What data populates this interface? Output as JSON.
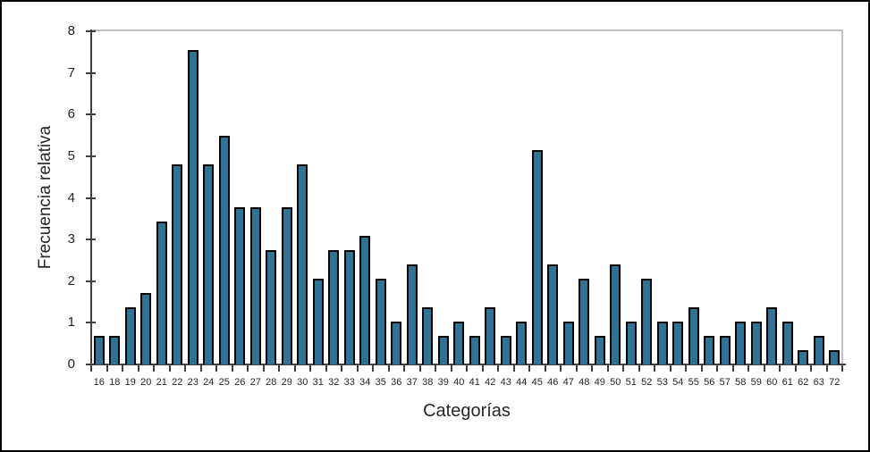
{
  "chart_data": {
    "type": "bar",
    "xlabel": "Categorías",
    "ylabel": "Frecuencia relativa",
    "ylim": [
      0,
      8
    ],
    "y_tick_labels": [
      "0",
      "1",
      "2",
      "3",
      "4",
      "5",
      "6",
      "7",
      "8"
    ],
    "categories": [
      "16",
      "18",
      "19",
      "20",
      "21",
      "22",
      "23",
      "24",
      "25",
      "26",
      "27",
      "28",
      "29",
      "30",
      "31",
      "32",
      "33",
      "34",
      "35",
      "36",
      "37",
      "38",
      "39",
      "40",
      "41",
      "42",
      "43",
      "44",
      "45",
      "46",
      "47",
      "48",
      "49",
      "50",
      "51",
      "52",
      "53",
      "54",
      "55",
      "56",
      "57",
      "58",
      "59",
      "60",
      "61",
      "62",
      "63",
      "72"
    ],
    "values": [
      0.69,
      0.69,
      1.37,
      1.72,
      3.44,
      4.81,
      7.56,
      4.81,
      5.5,
      3.78,
      3.78,
      2.75,
      3.78,
      4.81,
      2.06,
      2.75,
      2.75,
      3.09,
      2.06,
      1.03,
      2.41,
      1.37,
      0.69,
      1.03,
      0.69,
      1.37,
      0.69,
      1.03,
      5.15,
      2.41,
      1.03,
      2.06,
      0.69,
      2.41,
      1.03,
      2.06,
      1.03,
      1.03,
      1.37,
      0.69,
      0.69,
      1.03,
      1.03,
      1.37,
      1.03,
      0.34,
      0.69,
      0.34
    ],
    "legend": "none",
    "grid": "single gray gridline at y=8 forming top of plot area, gray right plot border",
    "colors": {
      "bar_fill": "#2E7296",
      "bar_border": "#000000",
      "plot_border": "#BFBFBF",
      "axis": "#3F3F3F",
      "text": "#262626",
      "canvas_border": "#000000",
      "background": "#FFFFFF"
    }
  }
}
